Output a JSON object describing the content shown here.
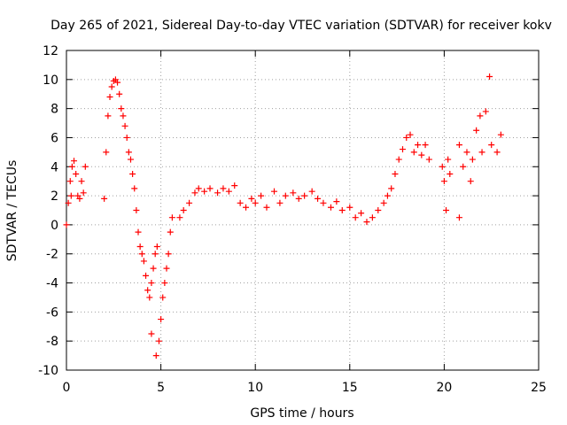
{
  "chart_data": {
    "type": "scatter",
    "title": "Day 265 of 2021, Sidereal Day-to-day VTEC variation (SDTVAR) for receiver kokv",
    "xlabel": "GPS time / hours",
    "ylabel": "SDTVAR / TECUs",
    "xlim": [
      0,
      25
    ],
    "ylim": [
      -10,
      12
    ],
    "x_ticks": [
      0,
      5,
      10,
      15,
      20,
      25
    ],
    "y_ticks": [
      -10,
      -8,
      -6,
      -4,
      -2,
      0,
      2,
      4,
      6,
      8,
      10,
      12
    ],
    "grid": true,
    "legend": "none",
    "marker": "+",
    "color": "#ff0000",
    "series": [
      {
        "name": "SDTVAR",
        "points": [
          [
            0.0,
            0.0
          ],
          [
            0.1,
            1.5
          ],
          [
            0.2,
            3.0
          ],
          [
            0.25,
            2.0
          ],
          [
            0.3,
            4.0
          ],
          [
            0.4,
            4.4
          ],
          [
            0.5,
            3.5
          ],
          [
            0.6,
            2.0
          ],
          [
            0.7,
            1.8
          ],
          [
            0.8,
            3.0
          ],
          [
            0.9,
            2.2
          ],
          [
            1.0,
            4.0
          ],
          [
            2.0,
            1.8
          ],
          [
            2.1,
            5.0
          ],
          [
            2.2,
            7.5
          ],
          [
            2.3,
            8.8
          ],
          [
            2.4,
            9.5
          ],
          [
            2.5,
            9.9
          ],
          [
            2.6,
            10.0
          ],
          [
            2.7,
            9.8
          ],
          [
            2.8,
            9.0
          ],
          [
            2.9,
            8.0
          ],
          [
            3.0,
            7.5
          ],
          [
            3.1,
            6.8
          ],
          [
            3.2,
            6.0
          ],
          [
            3.3,
            5.0
          ],
          [
            3.4,
            4.5
          ],
          [
            3.5,
            3.5
          ],
          [
            3.6,
            2.5
          ],
          [
            3.7,
            1.0
          ],
          [
            3.8,
            -0.5
          ],
          [
            3.9,
            -1.5
          ],
          [
            4.0,
            -2.0
          ],
          [
            4.1,
            -2.5
          ],
          [
            4.2,
            -3.5
          ],
          [
            4.3,
            -4.5
          ],
          [
            4.4,
            -5.0
          ],
          [
            4.5,
            -4.0
          ],
          [
            4.6,
            -3.0
          ],
          [
            4.7,
            -2.0
          ],
          [
            4.8,
            -1.5
          ],
          [
            4.5,
            -7.5
          ],
          [
            4.75,
            -9.0
          ],
          [
            4.9,
            -8.0
          ],
          [
            5.0,
            -6.5
          ],
          [
            5.1,
            -5.0
          ],
          [
            5.2,
            -4.0
          ],
          [
            5.3,
            -3.0
          ],
          [
            5.4,
            -2.0
          ],
          [
            5.5,
            -0.5
          ],
          [
            5.6,
            0.5
          ],
          [
            6.0,
            0.5
          ],
          [
            6.2,
            1.0
          ],
          [
            6.5,
            1.5
          ],
          [
            6.8,
            2.2
          ],
          [
            7.0,
            2.5
          ],
          [
            7.3,
            2.3
          ],
          [
            7.6,
            2.5
          ],
          [
            8.0,
            2.2
          ],
          [
            8.3,
            2.5
          ],
          [
            8.6,
            2.3
          ],
          [
            8.9,
            2.7
          ],
          [
            9.2,
            1.5
          ],
          [
            9.5,
            1.2
          ],
          [
            9.8,
            1.8
          ],
          [
            10.0,
            1.5
          ],
          [
            10.3,
            2.0
          ],
          [
            10.6,
            1.2
          ],
          [
            11.0,
            2.3
          ],
          [
            11.3,
            1.5
          ],
          [
            11.6,
            2.0
          ],
          [
            12.0,
            2.2
          ],
          [
            12.3,
            1.8
          ],
          [
            12.6,
            2.0
          ],
          [
            13.0,
            2.3
          ],
          [
            13.3,
            1.8
          ],
          [
            13.6,
            1.5
          ],
          [
            14.0,
            1.2
          ],
          [
            14.3,
            1.6
          ],
          [
            14.6,
            1.0
          ],
          [
            15.0,
            1.2
          ],
          [
            15.3,
            0.5
          ],
          [
            15.6,
            0.8
          ],
          [
            15.9,
            0.2
          ],
          [
            16.2,
            0.5
          ],
          [
            16.5,
            1.0
          ],
          [
            16.8,
            1.5
          ],
          [
            17.0,
            2.0
          ],
          [
            17.2,
            2.5
          ],
          [
            17.4,
            3.5
          ],
          [
            17.6,
            4.5
          ],
          [
            17.8,
            5.2
          ],
          [
            18.0,
            6.0
          ],
          [
            18.2,
            6.2
          ],
          [
            18.4,
            5.0
          ],
          [
            18.6,
            5.5
          ],
          [
            18.8,
            4.8
          ],
          [
            19.0,
            5.5
          ],
          [
            19.2,
            4.5
          ],
          [
            19.9,
            4.0
          ],
          [
            20.0,
            3.0
          ],
          [
            20.1,
            1.0
          ],
          [
            20.2,
            4.5
          ],
          [
            20.3,
            3.5
          ],
          [
            20.8,
            0.5
          ],
          [
            20.8,
            5.5
          ],
          [
            21.0,
            4.0
          ],
          [
            21.2,
            5.0
          ],
          [
            21.4,
            3.0
          ],
          [
            21.5,
            4.5
          ],
          [
            21.7,
            6.5
          ],
          [
            21.9,
            7.5
          ],
          [
            22.0,
            5.0
          ],
          [
            22.2,
            7.8
          ],
          [
            22.4,
            10.2
          ],
          [
            22.5,
            5.5
          ],
          [
            22.8,
            5.0
          ],
          [
            23.0,
            6.2
          ]
        ]
      }
    ]
  }
}
